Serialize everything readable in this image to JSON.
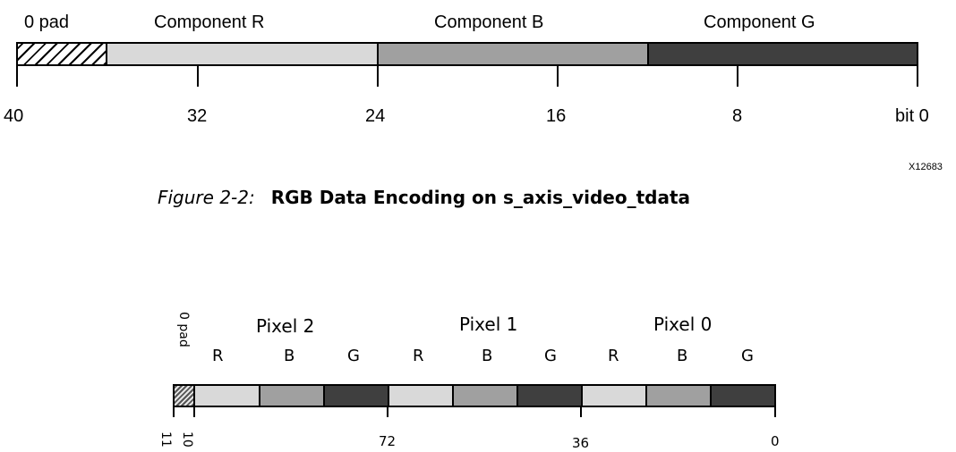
{
  "fig1": {
    "labels": {
      "pad": "0 pad",
      "r": "Component R",
      "b": "Component B",
      "g": "Component G"
    },
    "ticks": [
      "40",
      "32",
      "24",
      "16",
      "8",
      "bit 0"
    ],
    "id_code": "X12683",
    "colors": {
      "pad_pattern": "#000000",
      "r": "#d9d9d9",
      "b": "#a0a0a0",
      "g": "#3f3f3f"
    }
  },
  "caption": {
    "prefix": "Figure 2-2:",
    "title": "RGB Data Encoding on s_axis_video_tdata"
  },
  "fig2": {
    "pad_label": "0 pad",
    "pixels": [
      "Pixel 2",
      "Pixel 1",
      "Pixel 0"
    ],
    "components": [
      "R",
      "B",
      "G",
      "R",
      "B",
      "G",
      "R",
      "B",
      "G"
    ],
    "ticks_rotated": [
      "11",
      "10"
    ],
    "ticks": [
      "72",
      "36",
      "0"
    ]
  }
}
